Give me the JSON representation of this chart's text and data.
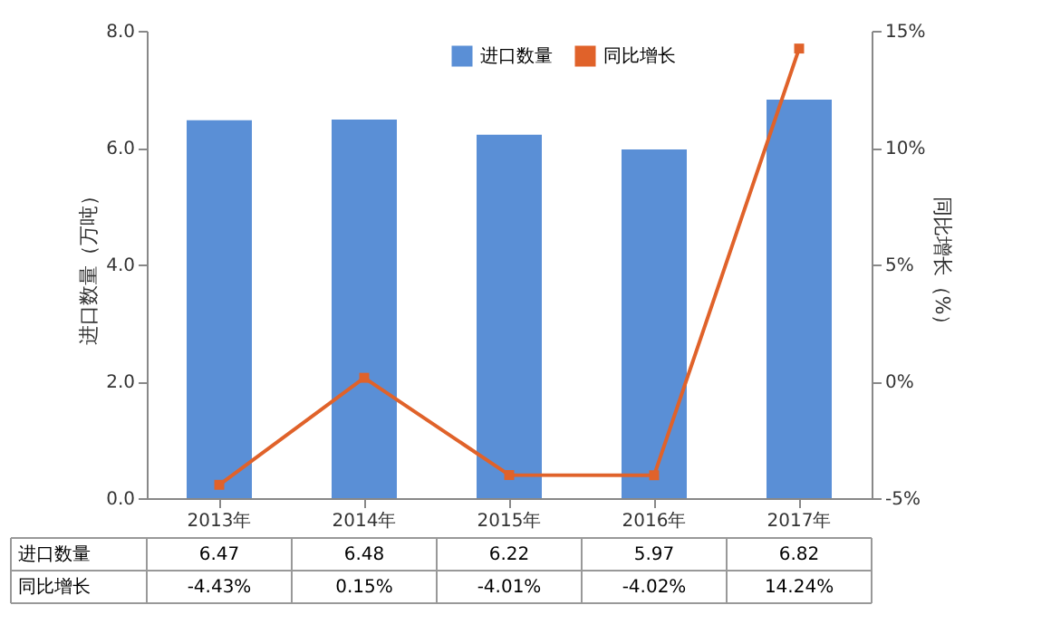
{
  "chart_data": {
    "type": "bar",
    "categories": [
      "2013年",
      "2014年",
      "2015年",
      "2016年",
      "2017年"
    ],
    "ylabel": "进口数量（万吨）",
    "y2label": "同比增长（%）",
    "series": [
      {
        "name": "进口数量",
        "color": "#5a8fd6",
        "values": [
          6.47,
          6.48,
          6.22,
          5.97,
          6.82
        ],
        "value_labels": [
          "6.47",
          "6.48",
          "6.22",
          "5.97",
          "6.82"
        ]
      },
      {
        "name": "同比增长",
        "type": "line",
        "axis": "y2",
        "color": "#e0622a",
        "marker": "square",
        "values": [
          -4.43,
          0.15,
          -4.01,
          -4.02,
          14.24
        ],
        "value_labels": [
          "-4.43%",
          "0.15%",
          "-4.01%",
          "-4.02%",
          "14.24%"
        ]
      }
    ],
    "ylim": [
      0,
      8
    ],
    "yticks": [
      {
        "value": 0,
        "label": "0.0"
      },
      {
        "value": 2,
        "label": "2.0"
      },
      {
        "value": 4,
        "label": "4.0"
      },
      {
        "value": 6,
        "label": "6.0"
      },
      {
        "value": 8,
        "label": "8.0"
      }
    ],
    "y2lim": [
      -5,
      15
    ],
    "y2ticks": [
      {
        "value": -5,
        "label": "-5%"
      },
      {
        "value": 0,
        "label": "0%"
      },
      {
        "value": 5,
        "label": "5%"
      },
      {
        "value": 10,
        "label": "10%"
      },
      {
        "value": 15,
        "label": "15%"
      }
    ],
    "grid": false,
    "legend": "top right"
  }
}
